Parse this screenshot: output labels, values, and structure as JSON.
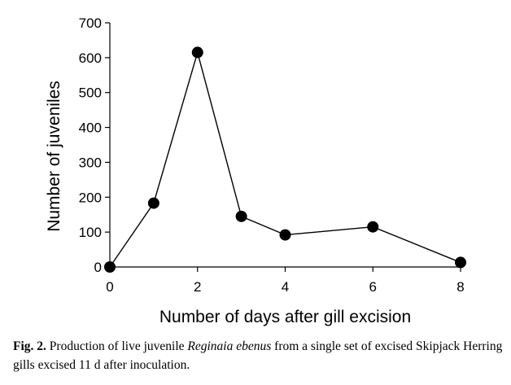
{
  "chart_data": {
    "type": "line",
    "title": "",
    "xlabel": "Number of days after gill excision",
    "ylabel": "Number of juveniles",
    "xlim": [
      0,
      8
    ],
    "ylim": [
      0,
      700
    ],
    "xticks": [
      0,
      2,
      4,
      6,
      8
    ],
    "yticks": [
      0,
      100,
      200,
      300,
      400,
      500,
      600,
      700
    ],
    "grid": false,
    "legend": "none",
    "series": [
      {
        "x": [
          0,
          1,
          2,
          3,
          4,
          6,
          8
        ],
        "y": [
          0,
          183,
          615,
          145,
          92,
          115,
          13
        ],
        "marker": "filled-circle",
        "color": "#000000"
      }
    ]
  },
  "caption": {
    "label": "Fig. 2.",
    "text_before": "Production of live juvenile",
    "species": "Reginaia ebenus",
    "text_after": "from a single set of excised Skipjack Herring gills excised 11 d after inoculation."
  }
}
